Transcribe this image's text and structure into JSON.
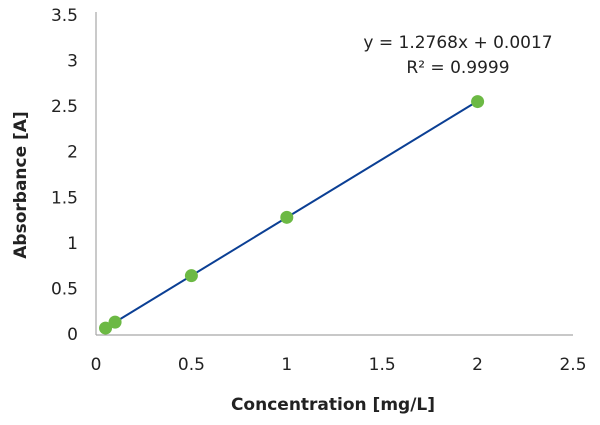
{
  "chart_data": {
    "type": "scatter",
    "title": "",
    "xlabel": "Concentration [mg/L]",
    "ylabel": "Absorbance [A]",
    "xlim": [
      0,
      2.5
    ],
    "ylim": [
      0,
      3.5
    ],
    "xticks": [
      "0",
      "0.5",
      "1",
      "1.5",
      "2",
      "2.5"
    ],
    "yticks": [
      "0",
      "0.5",
      "1",
      "1.5",
      "2",
      "2.5",
      "3",
      "3.5"
    ],
    "grid": false,
    "legend": "none",
    "series": [
      {
        "x": [
          0.05,
          0.1,
          0.5,
          1,
          2
        ],
        "y": [
          0.065,
          0.13,
          0.64,
          1.28,
          2.55
        ],
        "color": "#6cb944"
      }
    ],
    "trendline": {
      "type": "linear",
      "slope": 1.2768,
      "intercept": 0.0017,
      "color": "#0b3f94",
      "equation": "y = 1.2768x + 0.0017",
      "r_squared": "R² = 0.9999"
    }
  }
}
